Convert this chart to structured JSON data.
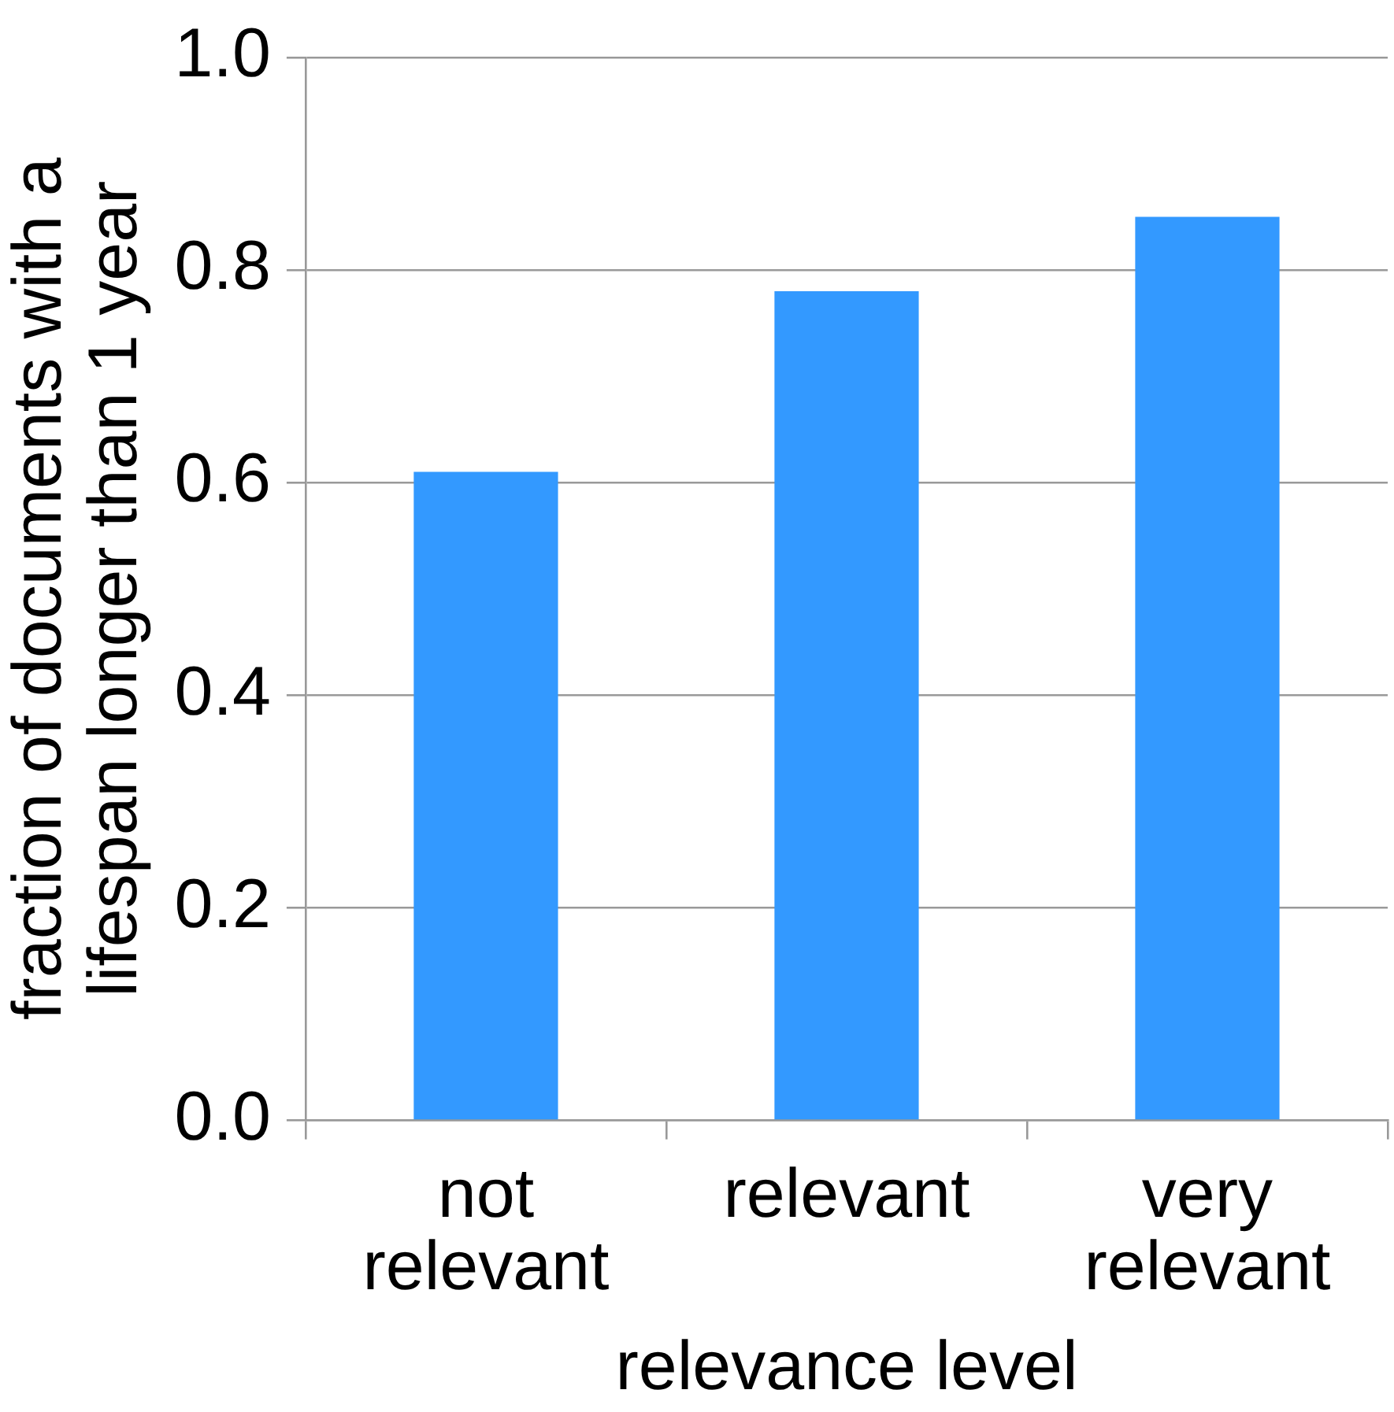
{
  "chart_data": {
    "type": "bar",
    "xlabel": "relevance level",
    "ylabel": "fraction of documents with a lifespan longer than 1 year",
    "categories": [
      "not relevant",
      "relevant",
      "very relevant"
    ],
    "values": [
      0.61,
      0.78,
      0.85
    ],
    "color": "#3399ff",
    "ylim": [
      0,
      1
    ],
    "yticks": [
      {
        "value": 0,
        "label": "0.0"
      },
      {
        "value": 0.2,
        "label": "0.2"
      },
      {
        "value": 0.4,
        "label": "0.4"
      },
      {
        "value": 0.6,
        "label": "0.6"
      },
      {
        "value": 0.8,
        "label": "0.8"
      },
      {
        "value": 1,
        "label": "1.0"
      }
    ],
    "grid": "y",
    "legend": false
  }
}
